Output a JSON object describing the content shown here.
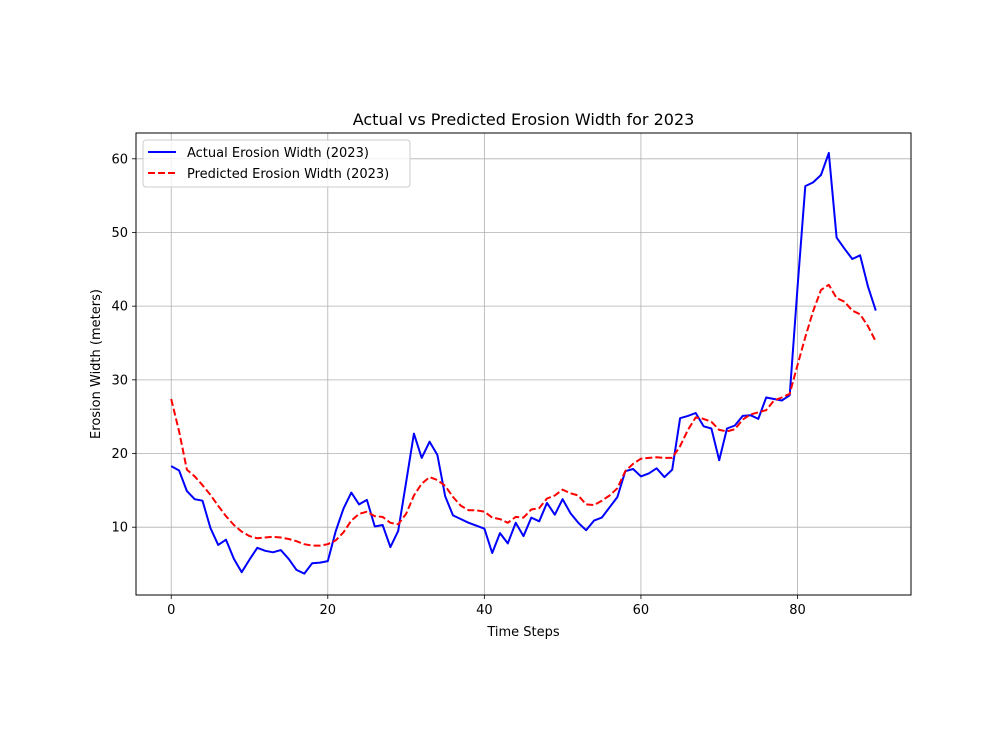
{
  "chart_data": {
    "type": "line",
    "title": "Actual vs Predicted Erosion Width for 2023",
    "xlabel": "Time Steps",
    "ylabel": "Erosion Width (meters)",
    "xlim": [
      -4.5,
      94.5
    ],
    "ylim": [
      0.8,
      63.5
    ],
    "x_ticks": [
      0,
      20,
      40,
      60,
      80
    ],
    "y_ticks": [
      10,
      20,
      30,
      40,
      50,
      60
    ],
    "grid": true,
    "legend_position": "top-left",
    "x": [
      0,
      1,
      2,
      3,
      4,
      5,
      6,
      7,
      8,
      9,
      10,
      11,
      12,
      13,
      14,
      15,
      16,
      17,
      18,
      19,
      20,
      21,
      22,
      23,
      24,
      25,
      26,
      27,
      28,
      29,
      30,
      31,
      32,
      33,
      34,
      35,
      36,
      37,
      38,
      39,
      40,
      41,
      42,
      43,
      44,
      45,
      46,
      47,
      48,
      49,
      50,
      51,
      52,
      53,
      54,
      55,
      56,
      57,
      58,
      59,
      60,
      61,
      62,
      63,
      64,
      65,
      66,
      67,
      68,
      69,
      70,
      71,
      72,
      73,
      74,
      75,
      76,
      77,
      78,
      79,
      80,
      81,
      82,
      83,
      84,
      85,
      86,
      87,
      88,
      89,
      90
    ],
    "series": [
      {
        "name": "Actual Erosion Width (2023)",
        "color": "#0000ff",
        "dash": "solid",
        "values": [
          18.3,
          17.7,
          14.9,
          13.8,
          13.6,
          9.9,
          7.6,
          8.3,
          5.7,
          3.9,
          5.6,
          7.2,
          6.8,
          6.6,
          6.9,
          5.7,
          4.2,
          3.7,
          5.1,
          5.2,
          5.4,
          9.4,
          12.5,
          14.7,
          13.1,
          13.7,
          10.1,
          10.3,
          7.3,
          9.5,
          16.1,
          22.7,
          19.4,
          21.6,
          19.8,
          14.2,
          11.6,
          11.1,
          10.6,
          10.2,
          9.8,
          6.5,
          9.2,
          7.8,
          10.6,
          8.8,
          11.3,
          10.8,
          13.3,
          11.7,
          13.8,
          11.9,
          10.6,
          9.6,
          10.9,
          11.3,
          12.7,
          14.1,
          17.6,
          17.9,
          16.9,
          17.3,
          18.0,
          16.8,
          17.8,
          24.8,
          25.1,
          25.5,
          23.7,
          23.4,
          19.1,
          23.4,
          23.8,
          25.1,
          25.2,
          24.7,
          27.6,
          27.4,
          27.2,
          27.9,
          42.5,
          56.3,
          56.8,
          57.8,
          60.8,
          49.3,
          47.8,
          46.4,
          46.9,
          42.7,
          39.4
        ]
      },
      {
        "name": "Predicted Erosion Width (2023)",
        "color": "#ff0000",
        "dash": "dashed",
        "values": [
          27.4,
          23.0,
          17.8,
          16.9,
          15.7,
          14.4,
          12.9,
          11.5,
          10.3,
          9.4,
          8.8,
          8.5,
          8.6,
          8.7,
          8.6,
          8.4,
          8.1,
          7.7,
          7.5,
          7.5,
          7.7,
          8.2,
          9.3,
          10.9,
          11.8,
          12.1,
          11.5,
          11.4,
          10.6,
          10.4,
          11.8,
          14.3,
          15.9,
          16.8,
          16.4,
          15.6,
          14.1,
          12.9,
          12.3,
          12.3,
          12.1,
          11.3,
          11.1,
          10.6,
          11.4,
          11.3,
          12.4,
          12.6,
          13.9,
          14.3,
          15.1,
          14.6,
          14.3,
          13.1,
          13.0,
          13.6,
          14.3,
          15.3,
          17.6,
          18.6,
          19.3,
          19.4,
          19.5,
          19.4,
          19.4,
          21.0,
          23.2,
          24.9,
          24.7,
          24.3,
          23.2,
          23.0,
          23.3,
          24.6,
          25.3,
          25.6,
          25.9,
          27.2,
          27.6,
          28.1,
          32.0,
          35.8,
          39.3,
          42.2,
          42.9,
          41.1,
          40.6,
          39.4,
          38.9,
          37.3,
          35.2
        ]
      }
    ]
  }
}
